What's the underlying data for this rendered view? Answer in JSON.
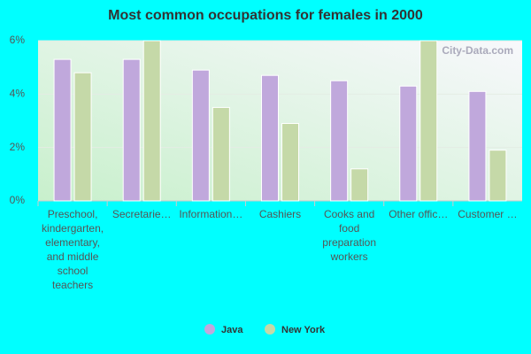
{
  "chart_data": {
    "type": "bar",
    "title": "Most common occupations for females in 2000",
    "watermark": "City-Data.com",
    "categories": [
      "Preschool, kindergarten, elementary, and middle school teachers",
      "Secretarie…",
      "Information…",
      "Cashiers",
      "Cooks and food preparation workers",
      "Other offic…",
      "Customer …"
    ],
    "series": [
      {
        "name": "Java",
        "color": "#c0a8dc",
        "values": [
          5.3,
          5.3,
          4.9,
          4.7,
          4.5,
          4.3,
          4.1
        ]
      },
      {
        "name": "New York",
        "color": "#c5d9a8",
        "values": [
          4.8,
          6.0,
          3.5,
          2.9,
          1.2,
          6.0,
          1.9
        ]
      }
    ],
    "ylim": [
      0,
      6
    ],
    "yticks": [
      {
        "value": 0,
        "label": "0%"
      },
      {
        "value": 2,
        "label": "2%"
      },
      {
        "value": 4,
        "label": "4%"
      },
      {
        "value": 6,
        "label": "6%"
      }
    ],
    "grid": true
  }
}
